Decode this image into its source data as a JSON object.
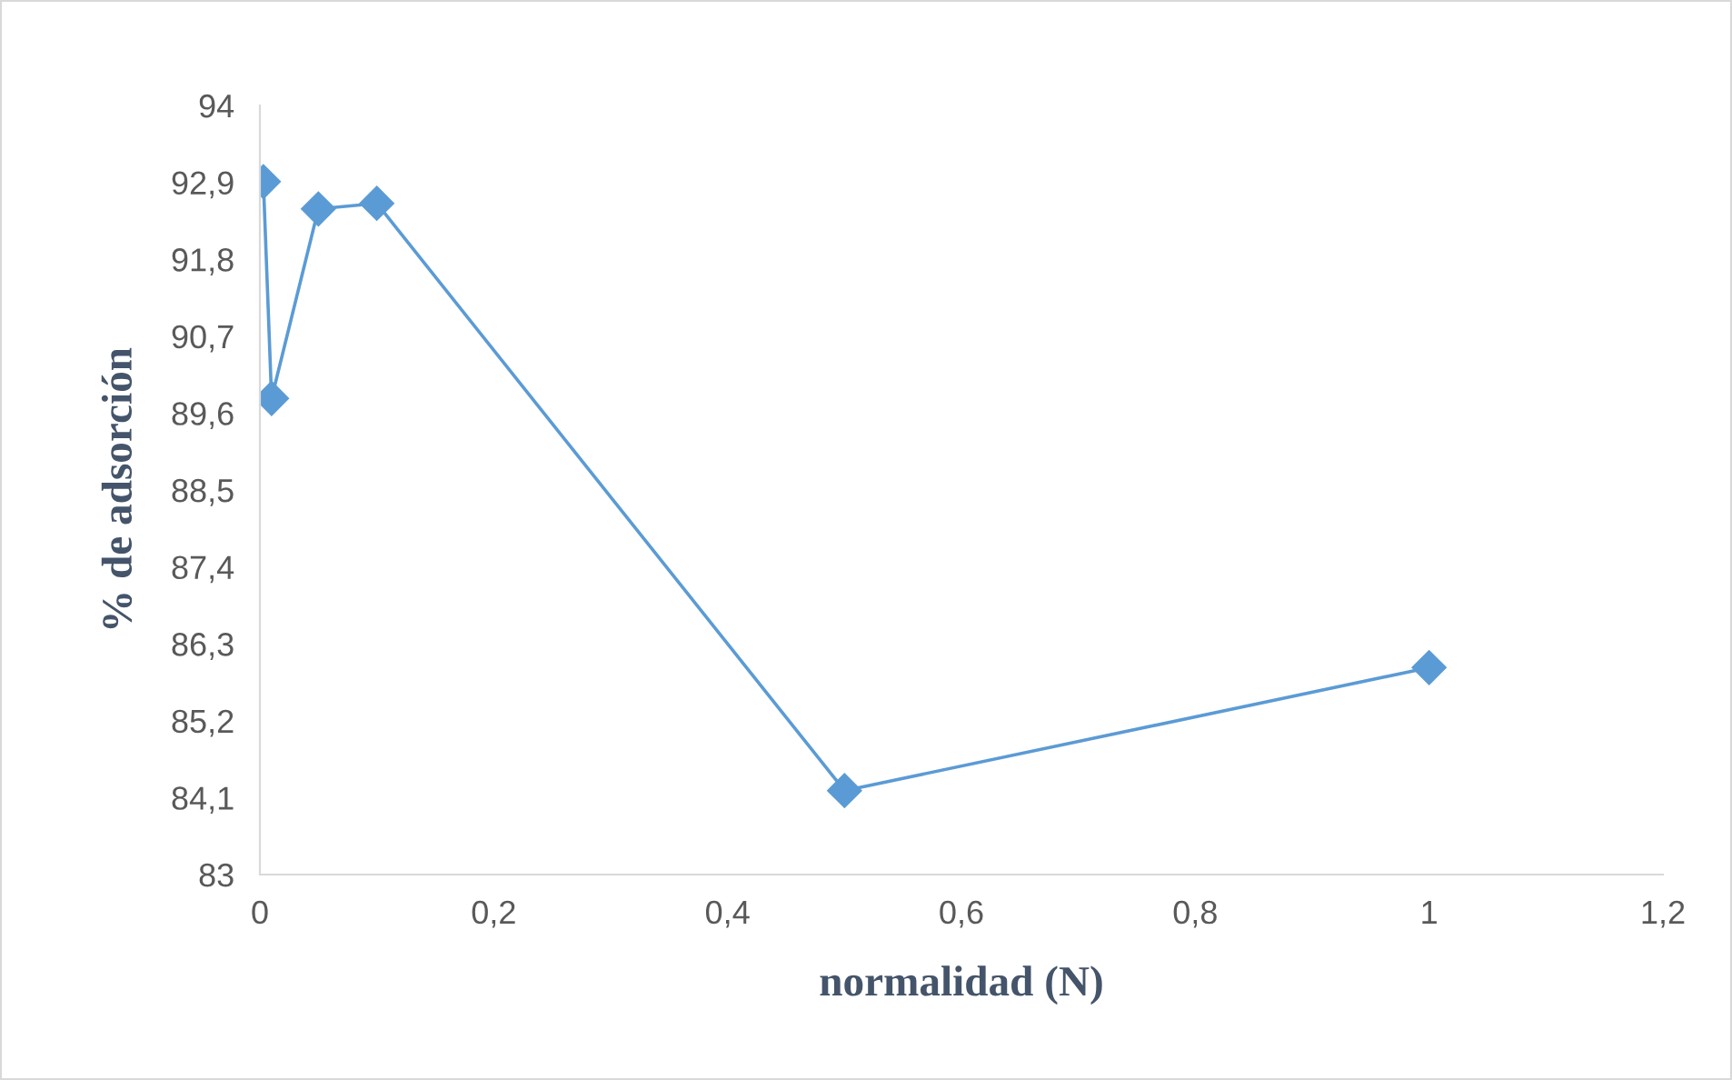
{
  "chart_data": {
    "type": "line",
    "xlabel": "normalidad (N)",
    "ylabel": "% de adsorción",
    "marker": "diamond",
    "grid": false,
    "legend": false,
    "x": [
      0.003,
      0.01,
      0.05,
      0.1,
      0.5,
      1
    ],
    "series": [
      {
        "color": "#5b9bd5",
        "values": [
          92.91,
          89.81,
          92.52,
          92.6,
          84.2,
          85.96
        ]
      }
    ],
    "xlim": [
      0,
      1.2
    ],
    "xticks": [
      0,
      {
        "value": 0.2,
        "label": "0,2"
      },
      {
        "value": 0.4,
        "label": "0,4"
      },
      {
        "value": 0.6,
        "label": "0,6"
      },
      {
        "value": 0.8,
        "label": "0,8"
      },
      1,
      {
        "value": 1.2,
        "label": "1,2"
      }
    ],
    "ylim": [
      83,
      94
    ],
    "yticks": [
      83,
      {
        "value": 84.1,
        "label": "84,1"
      },
      {
        "value": 85.2,
        "label": "85,2"
      },
      {
        "value": 86.3,
        "label": "86,3"
      },
      {
        "value": 87.4,
        "label": "87,4"
      },
      {
        "value": 88.5,
        "label": "88,5"
      },
      {
        "value": 89.6,
        "label": "89,6"
      },
      {
        "value": 90.7,
        "label": "90,7"
      },
      {
        "value": 91.8,
        "label": "91,8"
      },
      {
        "value": 92.9,
        "label": "92,9"
      },
      94
    ]
  }
}
